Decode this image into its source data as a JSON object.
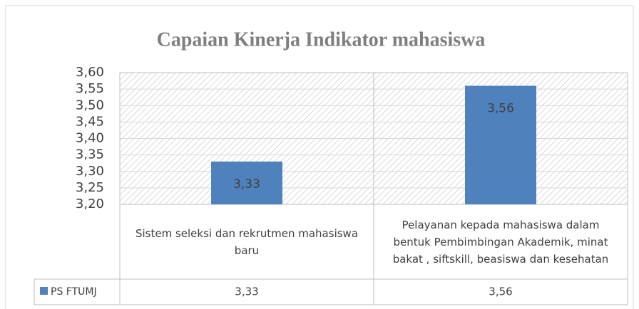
{
  "chart_data": {
    "type": "bar",
    "title": "Capaian Kinerja Indikator mahasiswa",
    "categories": [
      "Sistem seleksi dan rekrutmen mahasiswa baru",
      "Pelayanan kepada mahasiswa dalam bentuk Pembimbingan Akademik, minat bakat , siftskill, beasiswa dan kesehatan"
    ],
    "series": [
      {
        "name": "PS FTUMJ",
        "color": "#4f81bd",
        "values": [
          3.33,
          3.56
        ],
        "value_labels": [
          "3,33",
          "3,56"
        ]
      }
    ],
    "ylim": [
      3.2,
      3.6
    ],
    "yticks": [
      {
        "value": 3.2,
        "label": "3,20"
      },
      {
        "value": 3.25,
        "label": "3,25"
      },
      {
        "value": 3.3,
        "label": "3,30"
      },
      {
        "value": 3.35,
        "label": "3,35"
      },
      {
        "value": 3.4,
        "label": "3,40"
      },
      {
        "value": 3.45,
        "label": "3,45"
      },
      {
        "value": 3.5,
        "label": "3,50"
      },
      {
        "value": 3.55,
        "label": "3,55"
      },
      {
        "value": 3.6,
        "label": "3,60"
      }
    ],
    "grid": true
  }
}
